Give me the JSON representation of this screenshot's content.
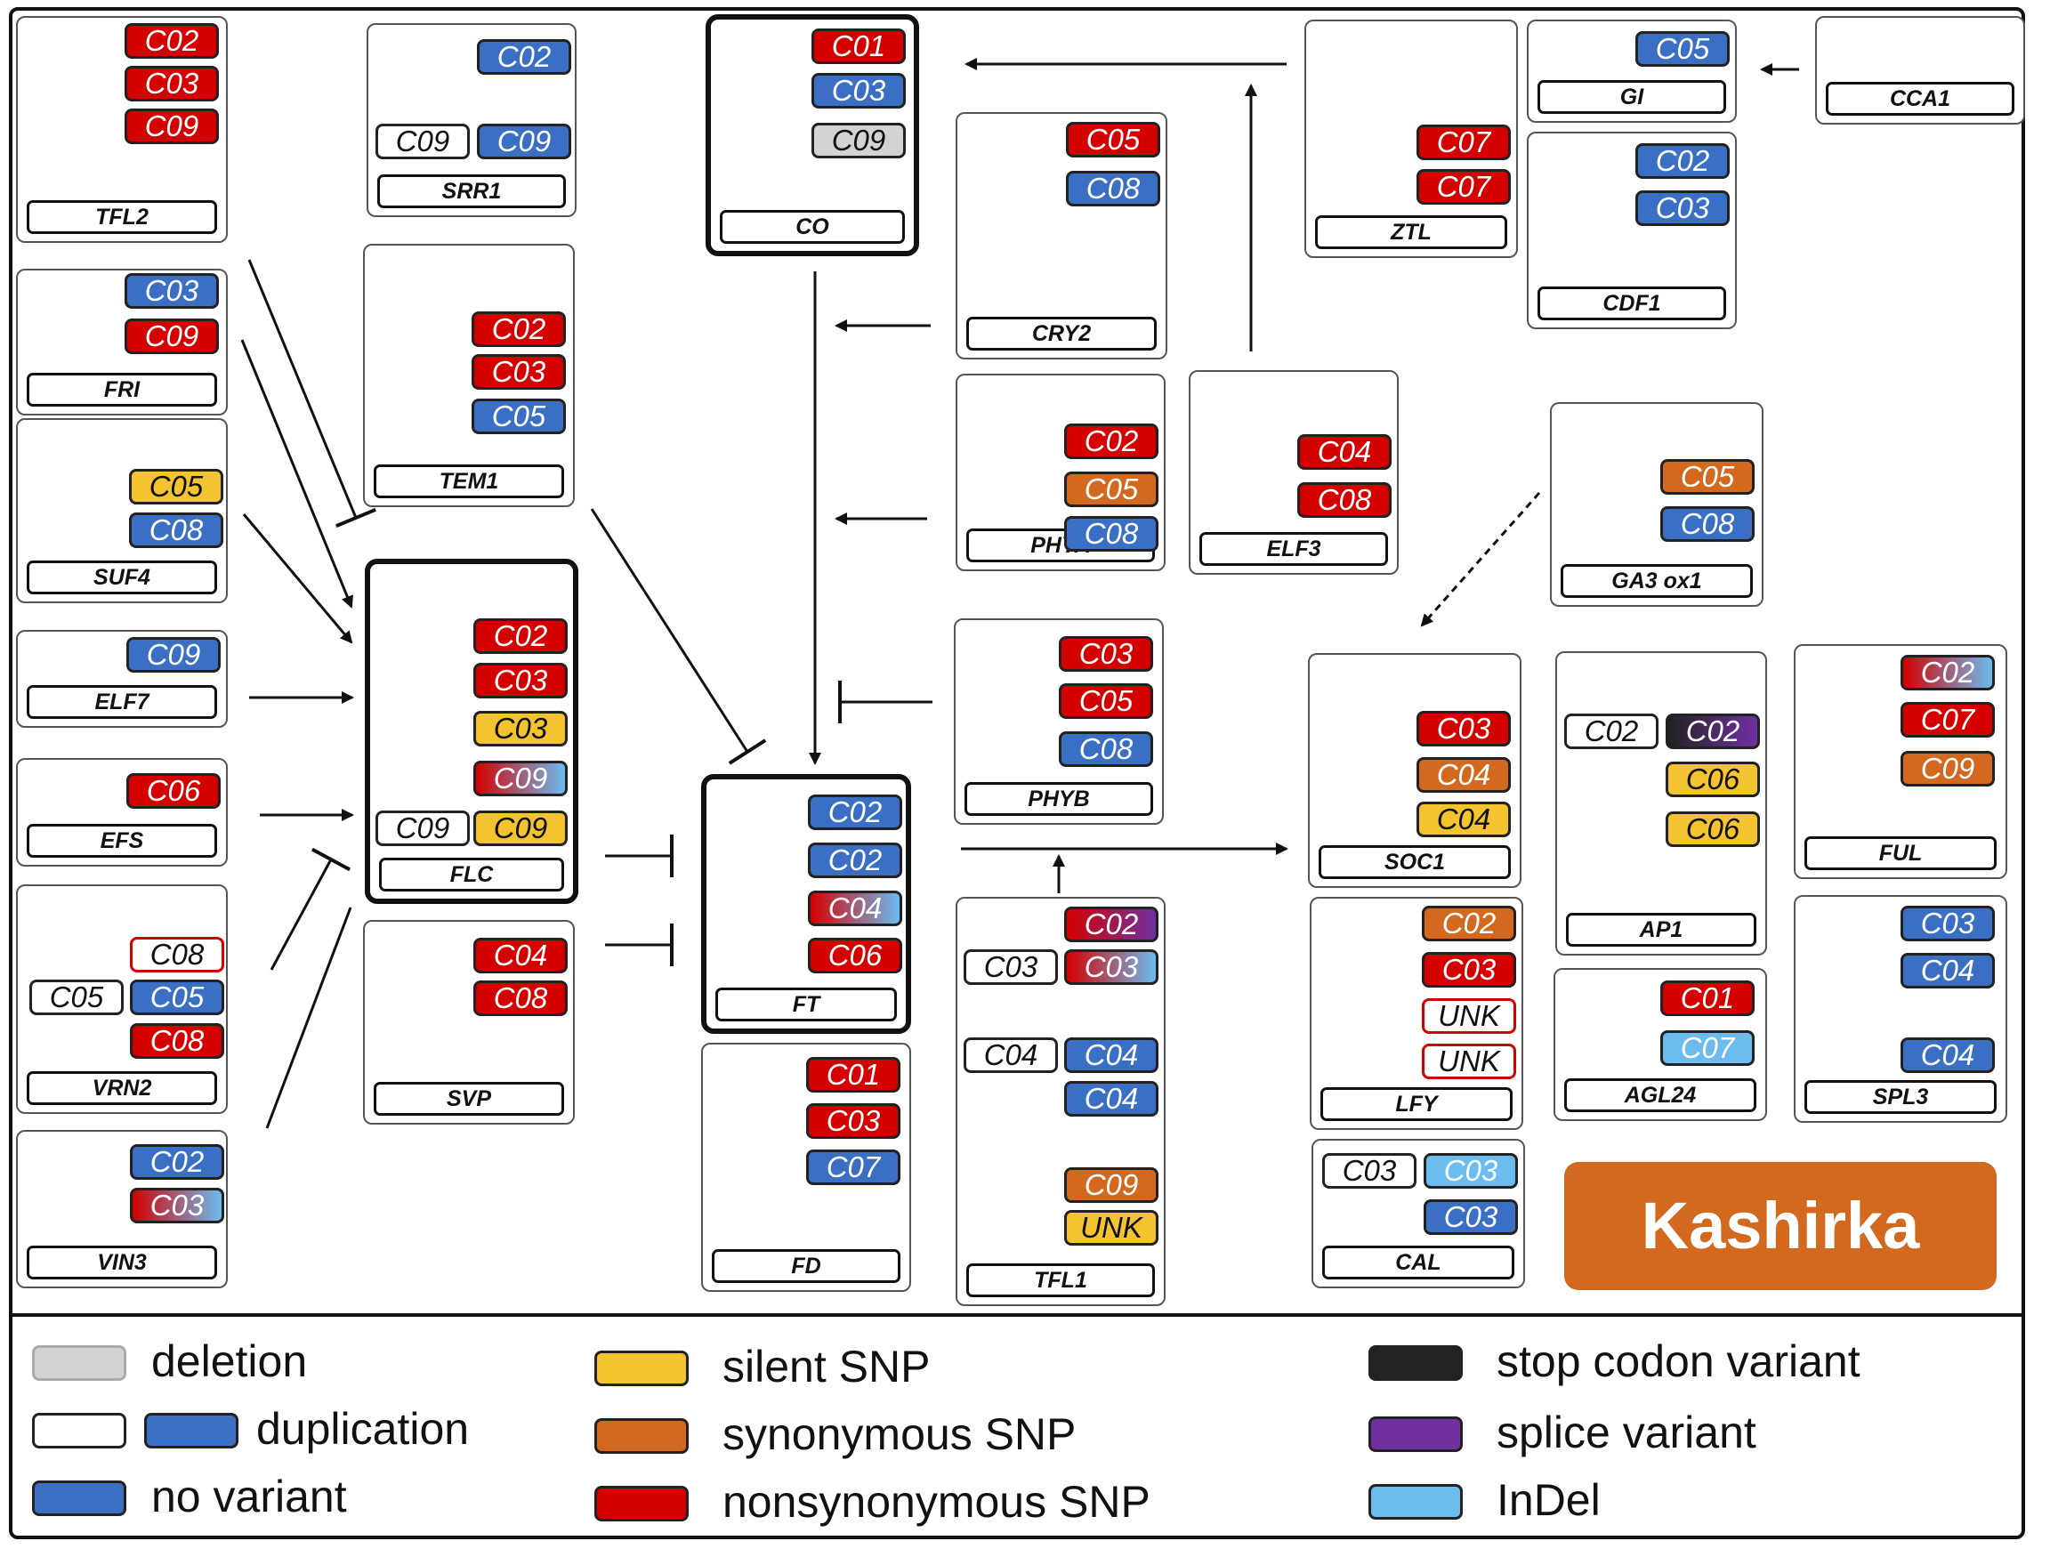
{
  "colors": {
    "deletion": "#d3d3d3",
    "duplication": "#ffffff",
    "no_variant": "#3a6fc4",
    "silent_snp": "#f4c430",
    "synonymous_snp": "#d2691e",
    "nonsynonymous_snp": "#d40000",
    "stop_codon_variant": "#222222",
    "splice_variant": "#7030a0",
    "indel": "#6cbcf0",
    "unk_border": "#d40000",
    "gradient_indel_start": "#d40000",
    "gradient_indel_end": "#6cbcf0",
    "gradient_splice_start": "#d40000",
    "gradient_splice_end": "#7030a0",
    "gradient_stop_start": "#222222",
    "gradient_stop_end": "#7030a0"
  },
  "cultivar_label": "Kashirka",
  "legend": [
    {
      "key": "deletion",
      "label": "deletion",
      "swatches": [
        "deletion"
      ]
    },
    {
      "key": "duplication",
      "label": "duplication",
      "swatches": [
        "duplication",
        "no_variant"
      ]
    },
    {
      "key": "no_variant",
      "label": "no variant",
      "swatches": [
        "no_variant"
      ]
    },
    {
      "key": "silent_snp",
      "label": "silent SNP",
      "swatches": [
        "silent_snp"
      ]
    },
    {
      "key": "synonymous_snp",
      "label": "synonymous SNP",
      "swatches": [
        "synonymous_snp"
      ]
    },
    {
      "key": "nonsynonymous_snp",
      "label": "nonsynonymous SNP",
      "swatches": [
        "nonsynonymous_snp"
      ]
    },
    {
      "key": "stop_codon_variant",
      "label": "stop codon variant",
      "swatches": [
        "stop_codon_variant"
      ]
    },
    {
      "key": "splice_variant",
      "label": "splice variant",
      "swatches": [
        "splice_variant"
      ]
    },
    {
      "key": "indel",
      "label": "InDel",
      "swatches": [
        "indel"
      ]
    }
  ],
  "genes": [
    {
      "id": "TFL2",
      "name": "TFL2",
      "variants": [
        {
          "chr": "C02",
          "type": "nonsynonymous_snp"
        },
        {
          "chr": "C03",
          "type": "nonsynonymous_snp"
        },
        {
          "chr": "C09",
          "type": "nonsynonymous_snp"
        }
      ]
    },
    {
      "id": "FRI",
      "name": "FRI",
      "variants": [
        {
          "chr": "C03",
          "type": "no_variant"
        },
        {
          "chr": "C09",
          "type": "nonsynonymous_snp"
        }
      ]
    },
    {
      "id": "SUF4",
      "name": "SUF4",
      "variants": [
        {
          "chr": "C05",
          "type": "silent_snp"
        },
        {
          "chr": "C08",
          "type": "no_variant"
        }
      ]
    },
    {
      "id": "ELF7",
      "name": "ELF7",
      "variants": [
        {
          "chr": "C09",
          "type": "no_variant"
        }
      ]
    },
    {
      "id": "EFS",
      "name": "EFS",
      "variants": [
        {
          "chr": "C06",
          "type": "nonsynonymous_snp"
        }
      ]
    },
    {
      "id": "VRN2",
      "name": "VRN2",
      "variants": [
        {
          "chr": "C08",
          "type": "unk_outline"
        },
        {
          "chr": "C05",
          "type": "duplication"
        },
        {
          "chr": "C05",
          "type": "no_variant"
        },
        {
          "chr": "C08",
          "type": "nonsynonymous_snp"
        }
      ]
    },
    {
      "id": "VIN3",
      "name": "VIN3",
      "variants": [
        {
          "chr": "C02",
          "type": "no_variant"
        },
        {
          "chr": "C03",
          "type": "grad_indel"
        }
      ]
    },
    {
      "id": "SRR1",
      "name": "SRR1",
      "variants": [
        {
          "chr": "C02",
          "type": "no_variant"
        },
        {
          "chr": "C09",
          "type": "duplication"
        },
        {
          "chr": "C09",
          "type": "no_variant"
        }
      ]
    },
    {
      "id": "TEM1",
      "name": "TEM1",
      "variants": [
        {
          "chr": "C02",
          "type": "nonsynonymous_snp"
        },
        {
          "chr": "C03",
          "type": "nonsynonymous_snp"
        },
        {
          "chr": "C05",
          "type": "no_variant"
        }
      ]
    },
    {
      "id": "FLC",
      "name": "FLC",
      "variants": [
        {
          "chr": "C02",
          "type": "nonsynonymous_snp"
        },
        {
          "chr": "C03",
          "type": "nonsynonymous_snp"
        },
        {
          "chr": "C03",
          "type": "silent_snp"
        },
        {
          "chr": "C09",
          "type": "grad_indel"
        },
        {
          "chr": "C09",
          "type": "duplication"
        },
        {
          "chr": "C09",
          "type": "silent_snp"
        }
      ]
    },
    {
      "id": "SVP",
      "name": "SVP",
      "variants": [
        {
          "chr": "C04",
          "type": "nonsynonymous_snp"
        },
        {
          "chr": "C08",
          "type": "nonsynonymous_snp"
        }
      ]
    },
    {
      "id": "CO",
      "name": "CO",
      "variants": [
        {
          "chr": "C01",
          "type": "nonsynonymous_snp"
        },
        {
          "chr": "C03",
          "type": "no_variant"
        },
        {
          "chr": "C09",
          "type": "deletion"
        }
      ]
    },
    {
      "id": "FT",
      "name": "FT",
      "variants": [
        {
          "chr": "C02",
          "type": "no_variant"
        },
        {
          "chr": "C02",
          "type": "no_variant"
        },
        {
          "chr": "C04",
          "type": "grad_indel"
        },
        {
          "chr": "C06",
          "type": "nonsynonymous_snp"
        }
      ]
    },
    {
      "id": "FD",
      "name": "FD",
      "variants": [
        {
          "chr": "C01",
          "type": "nonsynonymous_snp"
        },
        {
          "chr": "C03",
          "type": "nonsynonymous_snp"
        },
        {
          "chr": "C07",
          "type": "no_variant"
        }
      ]
    },
    {
      "id": "CRY2",
      "name": "CRY2",
      "variants": [
        {
          "chr": "C05",
          "type": "nonsynonymous_snp"
        },
        {
          "chr": "C08",
          "type": "no_variant"
        }
      ]
    },
    {
      "id": "PHYA",
      "name": "PHYA",
      "variants": [
        {
          "chr": "C02",
          "type": "nonsynonymous_snp"
        },
        {
          "chr": "C05",
          "type": "synonymous_snp"
        },
        {
          "chr": "C08",
          "type": "no_variant"
        }
      ]
    },
    {
      "id": "PHYB",
      "name": "PHYB",
      "variants": [
        {
          "chr": "C03",
          "type": "nonsynonymous_snp"
        },
        {
          "chr": "C05",
          "type": "nonsynonymous_snp"
        },
        {
          "chr": "C08",
          "type": "no_variant"
        }
      ]
    },
    {
      "id": "TFL1",
      "name": "TFL1",
      "variants": [
        {
          "chr": "C02",
          "type": "grad_splice"
        },
        {
          "chr": "C03",
          "type": "duplication"
        },
        {
          "chr": "C03",
          "type": "grad_indel"
        },
        {
          "chr": "C04",
          "type": "duplication"
        },
        {
          "chr": "C04",
          "type": "no_variant"
        },
        {
          "chr": "C04",
          "type": "no_variant"
        },
        {
          "chr": "C09",
          "type": "synonymous_snp"
        },
        {
          "chr": "UNK",
          "type": "silent_snp"
        }
      ]
    },
    {
      "id": "ELF3",
      "name": "ELF3",
      "variants": [
        {
          "chr": "C04",
          "type": "nonsynonymous_snp"
        },
        {
          "chr": "C08",
          "type": "nonsynonymous_snp"
        }
      ]
    },
    {
      "id": "ZTL",
      "name": "ZTL",
      "variants": [
        {
          "chr": "C07",
          "type": "nonsynonymous_snp"
        },
        {
          "chr": "C07",
          "type": "nonsynonymous_snp"
        }
      ]
    },
    {
      "id": "GI",
      "name": "GI",
      "variants": [
        {
          "chr": "C05",
          "type": "no_variant"
        }
      ]
    },
    {
      "id": "CCA1",
      "name": "CCA1",
      "variants": []
    },
    {
      "id": "CDF1",
      "name": "CDF1",
      "variants": [
        {
          "chr": "C02",
          "type": "no_variant"
        },
        {
          "chr": "C03",
          "type": "no_variant"
        }
      ]
    },
    {
      "id": "GA3ox1",
      "name": "GA3 ox1",
      "variants": [
        {
          "chr": "C05",
          "type": "synonymous_snp"
        },
        {
          "chr": "C08",
          "type": "no_variant"
        }
      ]
    },
    {
      "id": "SOC1",
      "name": "SOC1",
      "variants": [
        {
          "chr": "C03",
          "type": "nonsynonymous_snp"
        },
        {
          "chr": "C04",
          "type": "synonymous_snp"
        },
        {
          "chr": "C04",
          "type": "silent_snp"
        }
      ]
    },
    {
      "id": "AP1",
      "name": "AP1",
      "variants": [
        {
          "chr": "C02",
          "type": "duplication"
        },
        {
          "chr": "C02",
          "type": "grad_stop"
        },
        {
          "chr": "C06",
          "type": "silent_snp"
        },
        {
          "chr": "C06",
          "type": "silent_snp"
        }
      ]
    },
    {
      "id": "FUL",
      "name": "FUL",
      "variants": [
        {
          "chr": "C02",
          "type": "grad_indel"
        },
        {
          "chr": "C07",
          "type": "nonsynonymous_snp"
        },
        {
          "chr": "C09",
          "type": "synonymous_snp"
        }
      ]
    },
    {
      "id": "LFY",
      "name": "LFY",
      "variants": [
        {
          "chr": "C02",
          "type": "synonymous_snp"
        },
        {
          "chr": "C03",
          "type": "nonsynonymous_snp"
        },
        {
          "chr": "UNK",
          "type": "unk_outline"
        },
        {
          "chr": "UNK",
          "type": "unk_outline"
        }
      ]
    },
    {
      "id": "AGL24",
      "name": "AGL24",
      "variants": [
        {
          "chr": "C01",
          "type": "nonsynonymous_snp"
        },
        {
          "chr": "C07",
          "type": "indel"
        }
      ]
    },
    {
      "id": "SPL3",
      "name": "SPL3",
      "variants": [
        {
          "chr": "C03",
          "type": "no_variant"
        },
        {
          "chr": "C04",
          "type": "no_variant"
        },
        {
          "chr": "C04",
          "type": "no_variant"
        }
      ]
    },
    {
      "id": "CAL",
      "name": "CAL",
      "variants": [
        {
          "chr": "C03",
          "type": "duplication"
        },
        {
          "chr": "C03",
          "type": "indel"
        },
        {
          "chr": "C03",
          "type": "no_variant"
        }
      ]
    }
  ],
  "edges": [
    {
      "from": "TFL2",
      "to": "FLC",
      "type": "inhibition"
    },
    {
      "from": "FRI",
      "to": "FLC",
      "type": "activation"
    },
    {
      "from": "SUF4",
      "to": "FLC",
      "type": "activation"
    },
    {
      "from": "ELF7",
      "to": "FLC",
      "type": "activation"
    },
    {
      "from": "EFS",
      "to": "FLC",
      "type": "activation"
    },
    {
      "from": "VRN2",
      "to": "FLC",
      "type": "inhibition"
    },
    {
      "from": "VIN3",
      "to": "FLC",
      "type": "inhibition"
    },
    {
      "from": "TEM1",
      "to": "FT",
      "type": "inhibition"
    },
    {
      "from": "FLC",
      "to": "FT",
      "type": "inhibition"
    },
    {
      "from": "SVP",
      "to": "FT",
      "type": "inhibition"
    },
    {
      "from": "CO",
      "to": "FT",
      "type": "activation"
    },
    {
      "from": "CRY2",
      "to": "CO",
      "type": "activation"
    },
    {
      "from": "PHYA",
      "to": "CO",
      "type": "activation"
    },
    {
      "from": "PHYB",
      "to": "CO",
      "type": "inhibition"
    },
    {
      "from": "ZTL",
      "to": "CO",
      "type": "activation"
    },
    {
      "from": "ELF3",
      "to": "ZTL",
      "type": "activation"
    },
    {
      "from": "CCA1",
      "to": "GI",
      "type": "activation"
    },
    {
      "from": "GA3ox1",
      "to": "SOC1",
      "type": "dashed"
    },
    {
      "from": "FT",
      "to": "SOC1",
      "type": "activation"
    },
    {
      "from": "TFL1",
      "to": "FT-SOC1",
      "type": "activation"
    }
  ]
}
